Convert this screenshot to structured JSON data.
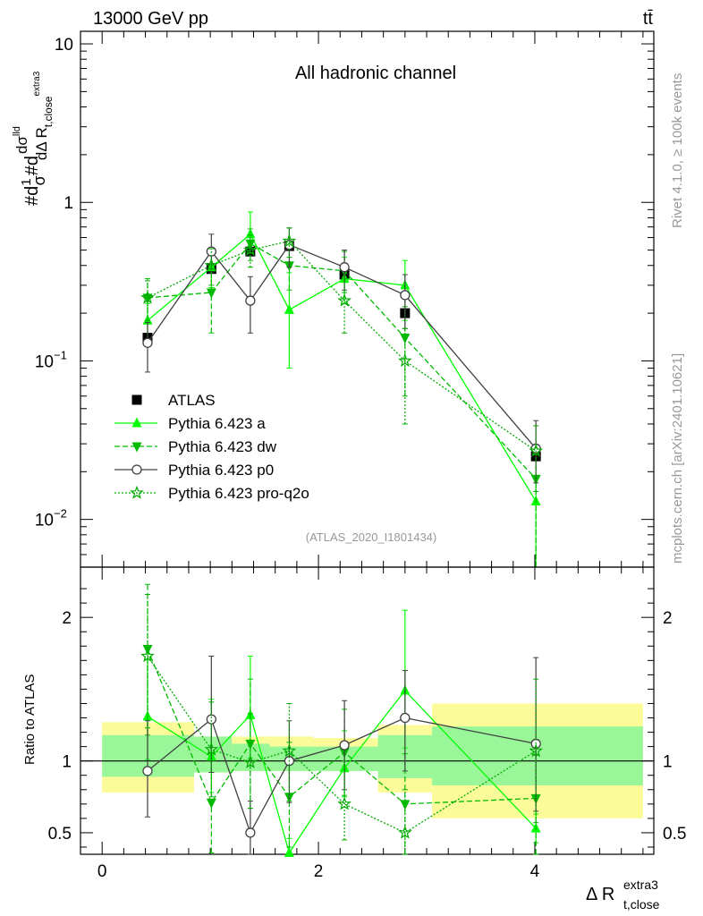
{
  "header": {
    "left": "13000 GeV pp",
    "right": "tt̄"
  },
  "side_text": {
    "rivet": "Rivet 4.1.0, ≥ 100k events",
    "mcplots": "mcplots.cern.ch [arXiv:2401.10621]"
  },
  "colors": {
    "atlas": "#000000",
    "pythia_a": "#00ff00",
    "pythia_dw": "#00bb00",
    "pythia_p0": "#404040",
    "pythia_pro": "#00aa00",
    "band_stat": "#99f799",
    "band_syst": "#fbfb99"
  },
  "chart_data": [
    {
      "type": "line",
      "panel": "main",
      "title": "All hadronic channel",
      "watermark": "(ATLAS_2020_I1801434)",
      "ylabel": "#d(1/σ)#d dσ^{lld}/dΔ R_{t,close}^{extra3}",
      "yscale": "log",
      "ylim": [
        0.005,
        12
      ],
      "xlim": [
        -0.2,
        5.1
      ],
      "ytick_labels": [
        {
          "value": 10,
          "label": "10"
        },
        {
          "value": 1,
          "label": "1"
        },
        {
          "value": 0.1,
          "label": "10",
          "exp": "−1"
        },
        {
          "value": 0.01,
          "label": "10",
          "exp": "−2"
        }
      ],
      "legend_position": "lower-left",
      "series": [
        {
          "name": "ATLAS",
          "marker": "square",
          "line": "none",
          "x": [
            0.42,
            1.01,
            1.37,
            1.73,
            2.24,
            2.8,
            4.01
          ],
          "y": [
            0.14,
            0.38,
            0.49,
            0.53,
            0.35,
            0.2,
            0.025
          ]
        },
        {
          "name": "Pythia 6.423 a",
          "marker": "triangle-up",
          "line": "solid",
          "x": [
            0.42,
            1.01,
            1.37,
            1.73,
            2.24,
            2.8,
            4.01
          ],
          "y": [
            0.18,
            0.39,
            0.63,
            0.21,
            0.33,
            0.3,
            0.013
          ],
          "err_lo": [
            0.05,
            0.1,
            0.15,
            0.12,
            0.1,
            0.12,
            0.0085
          ],
          "err_hi": [
            0.05,
            0.12,
            0.24,
            0.15,
            0.12,
            0.13,
            0.005
          ]
        },
        {
          "name": "Pythia 6.423 dw",
          "marker": "triangle-down",
          "line": "dashed",
          "x": [
            0.42,
            1.01,
            1.37,
            1.73,
            2.24,
            2.8,
            4.01
          ],
          "y": [
            0.25,
            0.27,
            0.55,
            0.4,
            0.37,
            0.14,
            0.018
          ],
          "err_lo": [
            0.07,
            0.12,
            0.12,
            0.12,
            0.1,
            0.08,
            0.013
          ],
          "err_hi": [
            0.08,
            0.11,
            0.13,
            0.13,
            0.12,
            0.08,
            0.008
          ]
        },
        {
          "name": "Pythia 6.423 p0",
          "marker": "circle-open",
          "line": "solid",
          "x": [
            0.42,
            1.01,
            1.37,
            1.73,
            2.24,
            2.8,
            4.01
          ],
          "y": [
            0.13,
            0.49,
            0.24,
            0.54,
            0.39,
            0.26,
            0.028
          ],
          "err_lo": [
            0.045,
            0.13,
            0.09,
            0.15,
            0.11,
            0.1,
            0.011
          ],
          "err_hi": [
            0.045,
            0.14,
            0.1,
            0.15,
            0.11,
            0.09,
            0.014
          ]
        },
        {
          "name": "Pythia 6.423 pro-q2o",
          "marker": "star-open",
          "line": "dotted",
          "x": [
            0.42,
            1.01,
            1.37,
            1.73,
            2.24,
            2.8,
            4.01
          ],
          "y": [
            0.25,
            0.4,
            0.5,
            0.57,
            0.24,
            0.1,
            0.027
          ],
          "err_lo": [
            0.07,
            0.1,
            0.11,
            0.12,
            0.09,
            0.06,
            0.012
          ],
          "err_hi": [
            0.07,
            0.11,
            0.12,
            0.12,
            0.09,
            0.06,
            0.012
          ]
        }
      ]
    },
    {
      "type": "line",
      "panel": "ratio",
      "ylabel": "Ratio to ATLAS",
      "xlabel": "Δ R",
      "xlabel_sup": "extra3",
      "xlabel_sub": "t,close",
      "ylim": [
        0.35,
        2.35
      ],
      "xlim": [
        -0.2,
        5.1
      ],
      "ytick_labels": [
        0.5,
        1,
        2
      ],
      "xtick_labels": [
        0,
        2,
        4
      ],
      "bands": {
        "bin_edges": [
          0.0,
          0.85,
          1.2,
          1.55,
          1.95,
          2.55,
          3.05,
          5.0
        ],
        "stat_lo": [
          0.89,
          0.92,
          0.93,
          0.93,
          0.93,
          0.88,
          0.83
        ],
        "stat_hi": [
          1.18,
          1.17,
          1.12,
          1.1,
          1.1,
          1.18,
          1.24
        ],
        "syst_lo": [
          0.78,
          0.92,
          0.93,
          0.93,
          0.93,
          0.78,
          0.6
        ],
        "syst_hi": [
          1.27,
          1.17,
          1.17,
          1.17,
          1.16,
          1.25,
          1.4
        ]
      },
      "series": [
        {
          "name": "Pythia 6.423 a",
          "x": [
            0.42,
            1.01,
            1.37,
            1.73,
            2.24,
            2.8,
            4.01
          ],
          "y": [
            1.31,
            1.03,
            1.32,
            0.36,
            0.95,
            1.49,
            0.53
          ],
          "err_lo": [
            0.3,
            0.25,
            0.3,
            0.05,
            0.2,
            0.4,
            0.1
          ],
          "err_hi": [
            0.4,
            0.4,
            0.41,
            0.1,
            0.26,
            0.56,
            0.1
          ]
        },
        {
          "name": "Pythia 6.423 dw",
          "x": [
            0.42,
            1.01,
            1.37,
            1.73,
            2.24,
            2.8,
            4.01
          ],
          "y": [
            1.78,
            0.71,
            1.12,
            0.75,
            1.06,
            0.7,
            0.74
          ],
          "err_lo": [
            0.6,
            0.35,
            0.45,
            0.35,
            0.3,
            0.35,
            0.42
          ],
          "err_hi": [
            0.45,
            0.35,
            0.45,
            0.38,
            0.3,
            0.35,
            0.3
          ]
        },
        {
          "name": "Pythia 6.423 p0",
          "x": [
            0.42,
            1.01,
            1.37,
            1.73,
            2.24,
            2.8,
            4.01
          ],
          "y": [
            0.93,
            1.29,
            0.5,
            1.0,
            1.11,
            1.3,
            1.12
          ],
          "err_lo": [
            0.32,
            0.37,
            0.2,
            0.29,
            0.31,
            0.37,
            0.47
          ],
          "err_hi": [
            0.35,
            0.44,
            0.22,
            0.28,
            0.31,
            0.33,
            0.6
          ]
        },
        {
          "name": "Pythia 6.423 pro-q2o",
          "x": [
            0.42,
            1.01,
            1.37,
            1.73,
            2.24,
            2.8,
            4.01
          ],
          "y": [
            1.73,
            1.08,
            0.99,
            1.07,
            0.7,
            0.5,
            1.07
          ],
          "err_lo": [
            0.5,
            0.33,
            0.32,
            0.35,
            0.25,
            0.2,
            0.5
          ],
          "err_hi": [
            0.43,
            0.33,
            0.34,
            0.33,
            0.3,
            0.3,
            0.5
          ]
        }
      ]
    }
  ]
}
